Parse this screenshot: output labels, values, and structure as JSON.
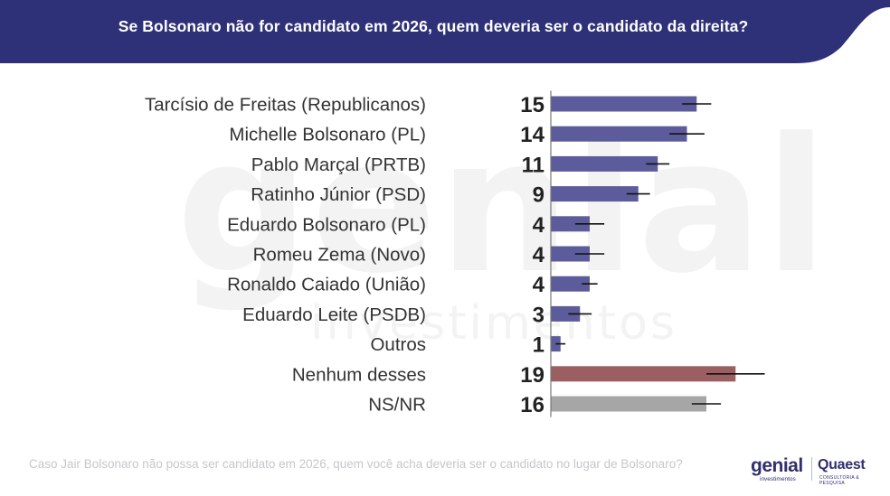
{
  "header": {
    "title": "Se Bolsonaro não for candidato em 2026, quem deveria ser o candidato da direita?"
  },
  "watermark": {
    "big": "genial",
    "small": "investimentos"
  },
  "chart_data": {
    "type": "bar",
    "orientation": "horizontal",
    "categories": [
      "Tarcísio de Freitas (Republicanos)",
      "Michelle Bolsonaro (PL)",
      "Pablo Marçal (PRTB)",
      "Ratinho Júnior (PSD)",
      "Eduardo Bolsonaro (PL)",
      "Romeu Zema (Novo)",
      "Ronaldo Caiado (União)",
      "Eduardo Leite (PSDB)",
      "Outros",
      "Nenhum desses",
      "NS/NR"
    ],
    "values": [
      15,
      14,
      11,
      9,
      4,
      4,
      4,
      3,
      1,
      19,
      16
    ],
    "value_labels": [
      "15",
      "14",
      "11",
      "9",
      "4",
      "4",
      "4",
      "3",
      "1",
      "19",
      "16"
    ],
    "error_margin": [
      1.5,
      1.8,
      1.2,
      1.2,
      1.5,
      1.5,
      0.8,
      1.2,
      0.5,
      3.0,
      1.5
    ],
    "bar_colors": [
      "#5c5b9b",
      "#5c5b9b",
      "#5c5b9b",
      "#5c5b9b",
      "#5c5b9b",
      "#5c5b9b",
      "#5c5b9b",
      "#5c5b9b",
      "#5c5b9b",
      "#9b5f61",
      "#a6a6a6"
    ],
    "title": "Se Bolsonaro não for candidato em 2026, quem deveria ser o candidato da direita?",
    "xlim": [
      0,
      35
    ],
    "grid": false,
    "legend": "none"
  },
  "footer": {
    "note": "Caso Jair Bolsonaro não possa ser candidato em 2026, quem você acha deveria ser o candidato no lugar de Bolsonaro?"
  },
  "logos": {
    "genial": "genial",
    "genial_sub": "investimentos",
    "quaest": "Quaest",
    "quaest_sub": "CONSULTORIA & PESQUISA"
  },
  "colors": {
    "header_bg": "#2e3177",
    "bar_default": "#5c5b9b",
    "bar_none": "#9b5f61",
    "bar_nsnr": "#a6a6a6",
    "text": "#333333",
    "error_bar": "#111111"
  }
}
